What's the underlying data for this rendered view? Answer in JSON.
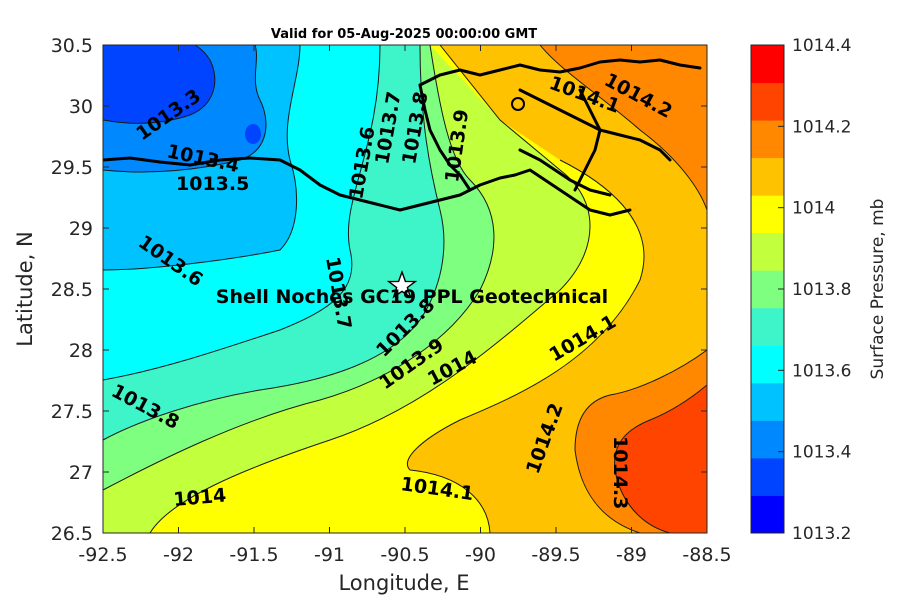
{
  "title": "Valid for 05-Aug-2025 00:00:00 GMT",
  "x_axis": {
    "label": "Longitude, E",
    "ticks": [
      "-92.5",
      "-92",
      "-91.5",
      "-91",
      "-90.5",
      "-90",
      "-89.5",
      "-89",
      "-88.5"
    ]
  },
  "y_axis": {
    "label": "Latitude, N",
    "ticks": [
      "30.5",
      "30",
      "29.5",
      "29",
      "28.5",
      "28",
      "27.5",
      "27",
      "26.5"
    ]
  },
  "colorbar": {
    "label": "Surface Pressure, mb",
    "ticks": [
      "1014.4",
      "1014.2",
      "1014",
      "1013.8",
      "1013.6",
      "1013.4",
      "1013.2"
    ],
    "colors": [
      "#0000ff",
      "#0044ff",
      "#0088ff",
      "#00c2ff",
      "#00ffff",
      "#3df5c8",
      "#7fff7f",
      "#c2ff3d",
      "#ffff00",
      "#ffc200",
      "#ff8800",
      "#ff4400",
      "#ff0000"
    ]
  },
  "site": {
    "label": "Shell Noches  GC19 PPL  Geotechnical",
    "marker": "star-icon"
  },
  "contour_labels": {
    "a": "1013.3",
    "b": "1013.4",
    "c": "1013.5",
    "d": "1013.6",
    "e": "1013.6",
    "f": "1013.7",
    "g": "1013.7",
    "h": "1013.8",
    "i": "1013.8",
    "j": "1013.8",
    "k": "1013.9",
    "l": "1013.9",
    "m": "1014",
    "n": "1014",
    "o": "1014.1",
    "p": "1014.1",
    "q": "1014.1",
    "r": "1014.2",
    "s": "1014.2",
    "t": "1014.3"
  }
}
